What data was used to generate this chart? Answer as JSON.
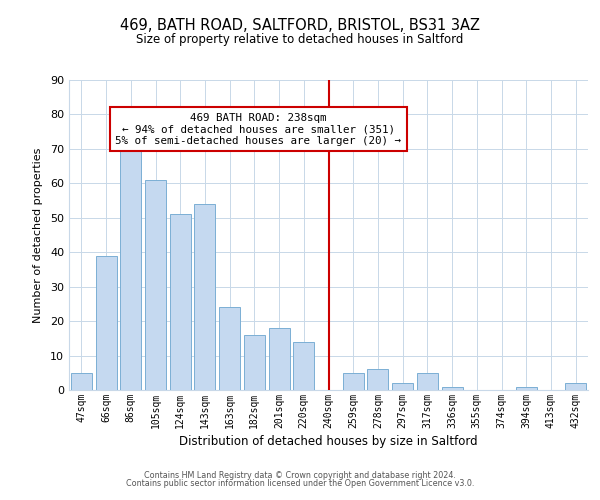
{
  "title": "469, BATH ROAD, SALTFORD, BRISTOL, BS31 3AZ",
  "subtitle": "Size of property relative to detached houses in Saltford",
  "xlabel": "Distribution of detached houses by size in Saltford",
  "ylabel": "Number of detached properties",
  "footer_line1": "Contains HM Land Registry data © Crown copyright and database right 2024.",
  "footer_line2": "Contains public sector information licensed under the Open Government Licence v3.0.",
  "bar_labels": [
    "47sqm",
    "66sqm",
    "86sqm",
    "105sqm",
    "124sqm",
    "143sqm",
    "163sqm",
    "182sqm",
    "201sqm",
    "220sqm",
    "240sqm",
    "259sqm",
    "278sqm",
    "297sqm",
    "317sqm",
    "336sqm",
    "355sqm",
    "374sqm",
    "394sqm",
    "413sqm",
    "432sqm"
  ],
  "bar_values": [
    5,
    39,
    73,
    61,
    51,
    54,
    24,
    16,
    18,
    14,
    0,
    5,
    6,
    2,
    5,
    1,
    0,
    0,
    1,
    0,
    2
  ],
  "bar_color": "#c5d9f0",
  "bar_edge_color": "#7bafd4",
  "vline_x": 10,
  "vline_color": "#cc0000",
  "ylim": [
    0,
    90
  ],
  "yticks": [
    0,
    10,
    20,
    30,
    40,
    50,
    60,
    70,
    80,
    90
  ],
  "annotation_title": "469 BATH ROAD: 238sqm",
  "annotation_line1": "← 94% of detached houses are smaller (351)",
  "annotation_line2": "5% of semi-detached houses are larger (20) →",
  "annotation_box_color": "#ffffff",
  "annotation_box_edge": "#cc0000"
}
